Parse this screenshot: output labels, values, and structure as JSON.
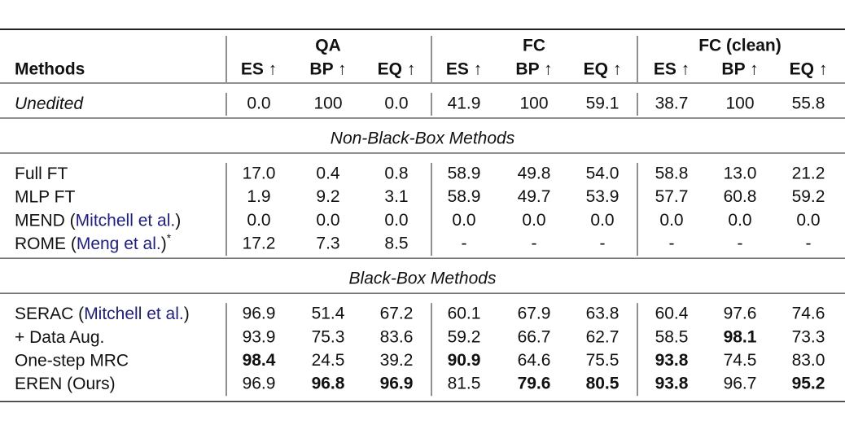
{
  "table": {
    "header": {
      "first": "Methods",
      "groups": [
        "QA",
        "FC",
        "FC (clean)"
      ],
      "metrics": [
        "ES ↑",
        "BP ↑",
        "EQ ↑",
        "ES ↑",
        "BP ↑",
        "EQ ↑",
        "ES ↑",
        "BP ↑",
        "EQ ↑"
      ]
    },
    "sections": [
      {
        "rows": [
          {
            "method": [
              {
                "text": "Unedited",
                "italic": true
              }
            ],
            "values": [
              "0.0",
              "100",
              "0.0",
              "41.9",
              "100",
              "59.1",
              "38.7",
              "100",
              "55.8"
            ],
            "bold": []
          }
        ]
      },
      {
        "title": "Non-Black-Box Methods",
        "rows": [
          {
            "method": [
              {
                "text": "Full FT"
              }
            ],
            "values": [
              "17.0",
              "0.4",
              "0.8",
              "58.9",
              "49.8",
              "54.0",
              "58.8",
              "13.0",
              "21.2"
            ],
            "bold": []
          },
          {
            "method": [
              {
                "text": "MLP FT"
              }
            ],
            "values": [
              "1.9",
              "9.2",
              "3.1",
              "58.9",
              "49.7",
              "53.9",
              "57.7",
              "60.8",
              "59.2"
            ],
            "bold": []
          },
          {
            "method": [
              {
                "text": "MEND ("
              },
              {
                "text": "Mitchell et al.",
                "link": true
              },
              {
                "text": ")"
              }
            ],
            "values": [
              "0.0",
              "0.0",
              "0.0",
              "0.0",
              "0.0",
              "0.0",
              "0.0",
              "0.0",
              "0.0"
            ],
            "bold": []
          },
          {
            "method": [
              {
                "text": "ROME ("
              },
              {
                "text": "Meng et al.",
                "link": true
              },
              {
                "text": ")"
              },
              {
                "text": "*",
                "sup": true
              }
            ],
            "values": [
              "17.2",
              "7.3",
              "8.5",
              "-",
              "-",
              "-",
              "-",
              "-",
              "-"
            ],
            "bold": []
          }
        ]
      },
      {
        "title": "Black-Box Methods",
        "rows": [
          {
            "method": [
              {
                "text": "SERAC ("
              },
              {
                "text": "Mitchell et al.",
                "link": true
              },
              {
                "text": ")"
              }
            ],
            "values": [
              "96.9",
              "51.4",
              "67.2",
              "60.1",
              "67.9",
              "63.8",
              "60.4",
              "97.6",
              "74.6"
            ],
            "bold": []
          },
          {
            "method": [
              {
                "text": "+ Data Aug."
              }
            ],
            "values": [
              "93.9",
              "75.3",
              "83.6",
              "59.2",
              "66.7",
              "62.7",
              "58.5",
              "98.1",
              "73.3"
            ],
            "bold": [
              7
            ]
          },
          {
            "method": [
              {
                "text": "One-step MRC"
              }
            ],
            "values": [
              "98.4",
              "24.5",
              "39.2",
              "90.9",
              "64.6",
              "75.5",
              "93.8",
              "74.5",
              "83.0"
            ],
            "bold": [
              0,
              3,
              6
            ]
          },
          {
            "method": [
              {
                "text": "EREN (Ours)"
              }
            ],
            "values": [
              "96.9",
              "96.8",
              "96.9",
              "81.5",
              "79.6",
              "80.5",
              "93.8",
              "96.7",
              "95.2"
            ],
            "bold": [
              1,
              2,
              4,
              5,
              6,
              8
            ]
          }
        ]
      }
    ]
  }
}
